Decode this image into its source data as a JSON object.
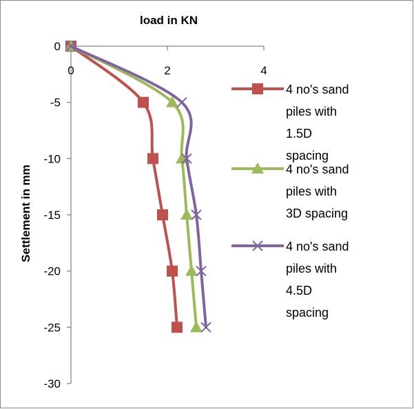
{
  "chart_data": {
    "type": "line",
    "title": "load in KN",
    "xlabel": "",
    "ylabel": "Settlement in mm",
    "xlim": [
      0,
      4
    ],
    "ylim": [
      -30,
      0
    ],
    "x_ticks": [
      0,
      2,
      4
    ],
    "y_ticks": [
      0,
      -5,
      -10,
      -15,
      -20,
      -25,
      -30
    ],
    "x_axis_position": "top",
    "grid": false,
    "legend_position": "right",
    "series": [
      {
        "name": "4 no's sand piles with 1.5D spacing",
        "color": "#c0504d",
        "marker": "square",
        "points": [
          [
            0,
            0
          ],
          [
            1.5,
            -5
          ],
          [
            1.7,
            -10
          ],
          [
            1.9,
            -15
          ],
          [
            2.1,
            -20
          ],
          [
            2.2,
            -25
          ]
        ]
      },
      {
        "name": "4 no's sand piles with 3D spacing",
        "color": "#9bbb59",
        "marker": "triangle",
        "points": [
          [
            0,
            0
          ],
          [
            2.1,
            -5
          ],
          [
            2.3,
            -10
          ],
          [
            2.4,
            -15
          ],
          [
            2.5,
            -20
          ],
          [
            2.6,
            -25
          ]
        ]
      },
      {
        "name": "4 no's sand piles with 4.5D spacing",
        "color": "#8064a2",
        "marker": "x",
        "points": [
          [
            0,
            0
          ],
          [
            2.3,
            -5
          ],
          [
            2.4,
            -10
          ],
          [
            2.6,
            -15
          ],
          [
            2.7,
            -20
          ],
          [
            2.8,
            -25
          ]
        ]
      }
    ],
    "legend_lines": [
      [
        "4 no's sand",
        "piles with",
        "1.5D",
        "spacing"
      ],
      [
        "4 no's sand",
        "piles with",
        "3D spacing"
      ],
      [
        "4 no's sand",
        "piles with",
        "4.5D",
        "spacing"
      ]
    ]
  }
}
